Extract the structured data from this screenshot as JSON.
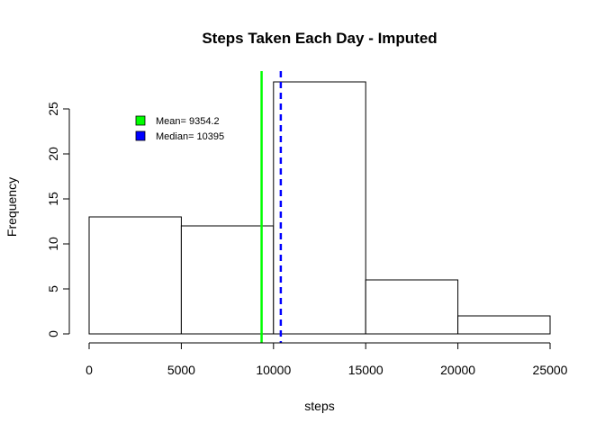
{
  "chart_data": {
    "type": "histogram",
    "title": "Steps Taken Each Day - Imputed",
    "xlabel": "steps",
    "ylabel": "Frequency",
    "xlim": [
      0,
      25000
    ],
    "ylim": [
      0,
      28
    ],
    "x_ticks": [
      0,
      5000,
      10000,
      15000,
      20000,
      25000
    ],
    "y_ticks": [
      0,
      5,
      10,
      15,
      20,
      25
    ],
    "bins": [
      {
        "from": 0,
        "to": 5000,
        "count": 13
      },
      {
        "from": 5000,
        "to": 10000,
        "count": 12
      },
      {
        "from": 10000,
        "to": 15000,
        "count": 28
      },
      {
        "from": 15000,
        "to": 20000,
        "count": 6
      },
      {
        "from": 20000,
        "to": 25000,
        "count": 2
      }
    ],
    "bar_fill": "#ffffff",
    "bar_stroke": "#000000",
    "reference_lines": [
      {
        "name": "Mean",
        "value": 9354.2,
        "color": "#00ff00",
        "style": "solid"
      },
      {
        "name": "Median",
        "value": 10395,
        "color": "#0000ff",
        "style": "dashed"
      }
    ],
    "legend": {
      "position": "top-left",
      "items": [
        {
          "label": "Mean= 9354.2",
          "color": "#00ff00"
        },
        {
          "label": "Median= 10395",
          "color": "#0000ff"
        }
      ]
    },
    "grid": false
  }
}
